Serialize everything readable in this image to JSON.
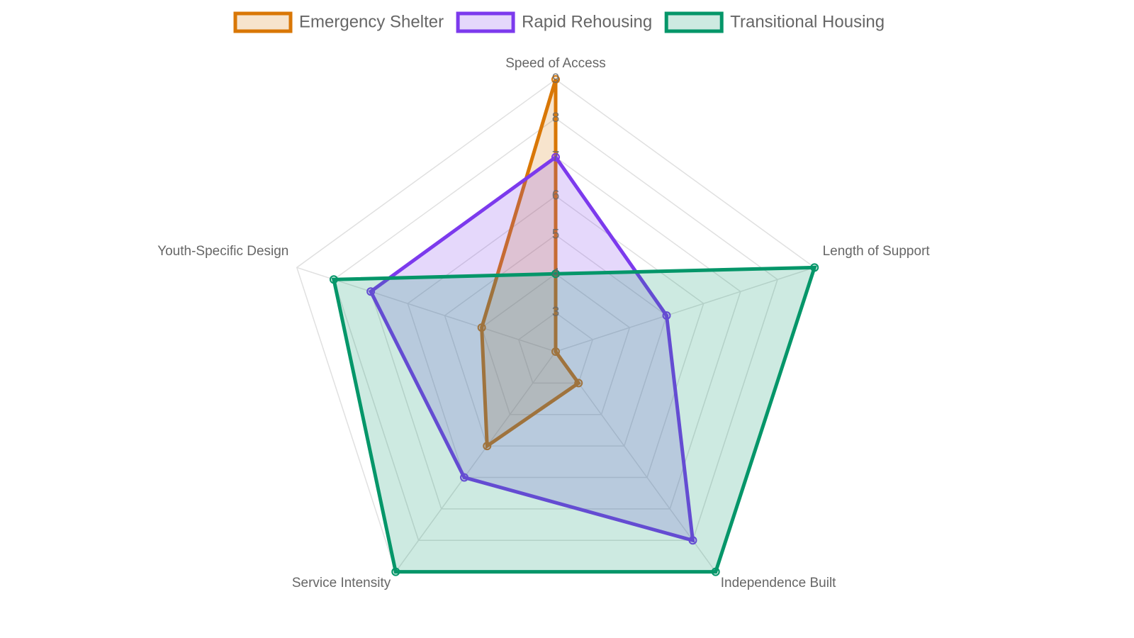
{
  "chart_data": {
    "type": "radar",
    "categories": [
      "Speed of Access",
      "Length of Support",
      "Independence Built",
      "Service Intensity",
      "Youth-Specific Design"
    ],
    "series": [
      {
        "name": "Emergency Shelter",
        "color": "#d97706",
        "values": [
          9,
          2,
          3,
          5,
          4
        ]
      },
      {
        "name": "Rapid Rehousing",
        "color": "#7c3aed",
        "values": [
          7,
          5,
          8,
          6,
          7
        ]
      },
      {
        "name": "Transitional Housing",
        "color": "#059669",
        "values": [
          4,
          9,
          9,
          9,
          8
        ]
      }
    ],
    "rlim": [
      2,
      9
    ],
    "rticks": [
      3,
      4,
      5,
      6,
      7,
      8,
      9
    ],
    "grid": true,
    "legend": "top"
  }
}
